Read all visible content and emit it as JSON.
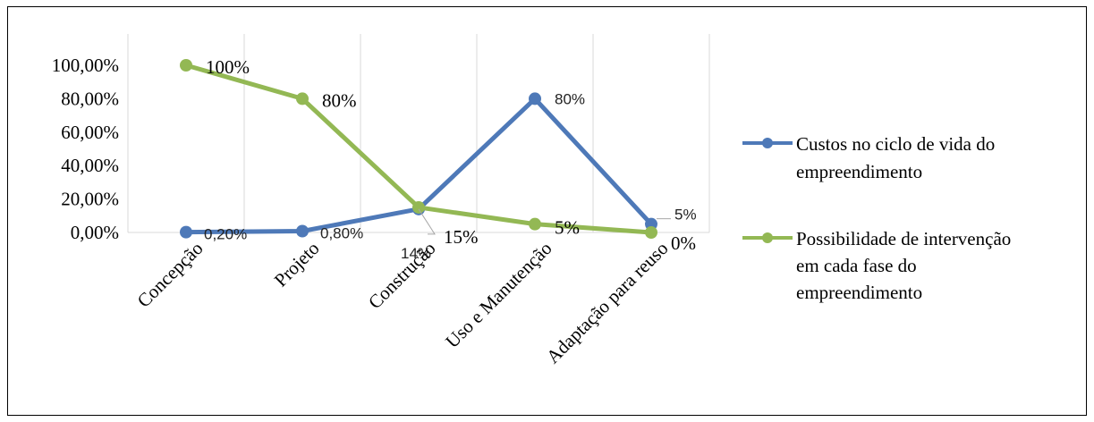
{
  "chart_data": {
    "type": "line",
    "categories": [
      "Concepção",
      "Projeto",
      "Construção",
      "Uso e Manutenção",
      "Adaptação para reuso"
    ],
    "series": [
      {
        "name": "Custos no ciclo de vida do empreendimento",
        "color": "#4e79b8",
        "values": [
          0.002,
          0.008,
          0.14,
          0.8,
          0.05
        ],
        "labels": [
          "0,20%",
          "0,80%",
          "14%",
          "80%",
          "5%"
        ]
      },
      {
        "name": "Possibilidade de intervenção em cada fase do empreendimento",
        "color": "#93b854",
        "values": [
          1.0,
          0.8,
          0.15,
          0.05,
          0.0
        ],
        "labels": [
          "100%",
          "80%",
          "15%",
          "5%",
          "0%"
        ]
      }
    ],
    "yticks": [
      "0,00%",
      "20,00%",
      "40,00%",
      "60,00%",
      "80,00%",
      "100,00%"
    ],
    "ylim": [
      0,
      1
    ],
    "grid": "vertical",
    "legend": "right"
  },
  "legend": {
    "item1": {
      "line1": "Custos no ciclo de vida do",
      "line2": "empreendimento"
    },
    "item2": {
      "line1": "Possibilidade de intervenção",
      "line2": "em cada fase do",
      "line3": "empreendimento"
    }
  }
}
